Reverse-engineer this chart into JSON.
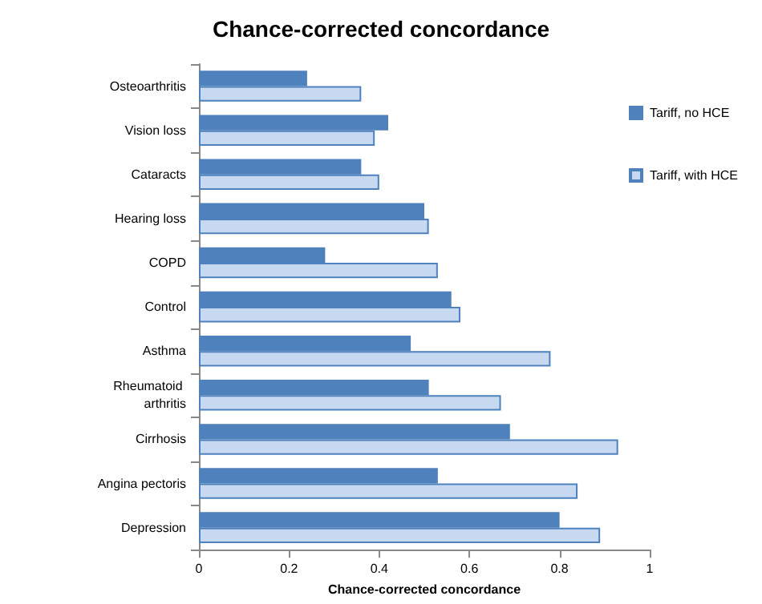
{
  "chart_data": {
    "type": "bar",
    "orientation": "horizontal",
    "title": "Chance-corrected concordance",
    "xlabel": "Chance-corrected concordance",
    "categories": [
      "Osteoarthritis",
      "Vision loss",
      "Cataracts",
      "Hearing loss",
      "COPD",
      "Control",
      "Asthma",
      "Rheumatoid arthritis",
      "Cirrhosis",
      "Angina pectoris",
      "Depression"
    ],
    "series": [
      {
        "name": "Tariff, no HCE",
        "color": "#4f81bd",
        "values": [
          0.24,
          0.42,
          0.36,
          0.5,
          0.28,
          0.56,
          0.47,
          0.51,
          0.69,
          0.53,
          0.8
        ]
      },
      {
        "name": "Tariff, with HCE",
        "color": "#c6d9f1",
        "values": [
          0.36,
          0.39,
          0.4,
          0.51,
          0.53,
          0.58,
          0.78,
          0.67,
          0.93,
          0.84,
          0.89
        ]
      }
    ],
    "xlim": [
      0,
      1
    ],
    "xticks": [
      0,
      0.2,
      0.4,
      0.6,
      0.8,
      1
    ],
    "grid": false,
    "legend": "top right"
  }
}
